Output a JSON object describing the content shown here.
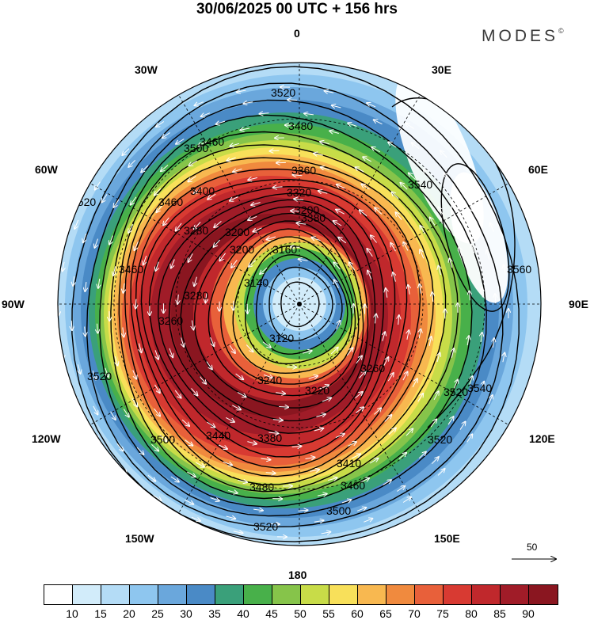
{
  "title": "30/06/2025  00 UTC  + 156 hrs",
  "brand": "MODES",
  "brand_mark": "©",
  "longitudes": {
    "n0": "0",
    "n30e": "30E",
    "n60e": "60E",
    "n90e": "90E",
    "n120e": "120E",
    "n150e": "150E",
    "n180": "180",
    "n150w": "150W",
    "n120w": "120W",
    "n90w": "90W",
    "n60w": "60W",
    "n30w": "30W"
  },
  "reference_vector": "50",
  "contour_labels": [
    "3520",
    "3480",
    "3500",
    "3460",
    "3460",
    "3360",
    "3400",
    "3320",
    "3200",
    "3160",
    "3280",
    "3140",
    "3200",
    "3280",
    "3120",
    "3460",
    "3260",
    "3520",
    "3540",
    "3560",
    "3380",
    "3240",
    "3220",
    "3200",
    "3260",
    "3440",
    "3380",
    "3410",
    "3460",
    "3500",
    "3480",
    "3520",
    "3520",
    "3500",
    "3540",
    "3520",
    "3520"
  ],
  "colorbar": {
    "ticks": [
      "10",
      "15",
      "20",
      "25",
      "30",
      "35",
      "40",
      "45",
      "50",
      "55",
      "60",
      "65",
      "70",
      "75",
      "80",
      "85",
      "90"
    ],
    "colors": [
      "#ffffff",
      "#d2ecfa",
      "#b4dcf6",
      "#8ec6ef",
      "#6aa7dc",
      "#4a8ac6",
      "#3aa07a",
      "#48b04a",
      "#86c44a",
      "#c8dc48",
      "#f8e05a",
      "#f8b850",
      "#f08a3e",
      "#e8603a",
      "#d83a32",
      "#c0282c",
      "#a01c28",
      "#8a1620"
    ]
  },
  "chart_data": {
    "type": "map",
    "projection": "south polar stereographic",
    "fields": [
      "wind speed (shaded)",
      "geopotential height contours",
      "wind vectors"
    ],
    "wind_speed_levels": [
      10,
      15,
      20,
      25,
      30,
      35,
      40,
      45,
      50,
      55,
      60,
      65,
      70,
      75,
      80,
      85,
      90
    ],
    "height_contour_values": [
      3120,
      3140,
      3160,
      3200,
      3220,
      3240,
      3260,
      3280,
      3320,
      3360,
      3380,
      3400,
      3410,
      3440,
      3460,
      3480,
      3500,
      3520,
      3540,
      3560
    ],
    "reference_vector": 50
  }
}
